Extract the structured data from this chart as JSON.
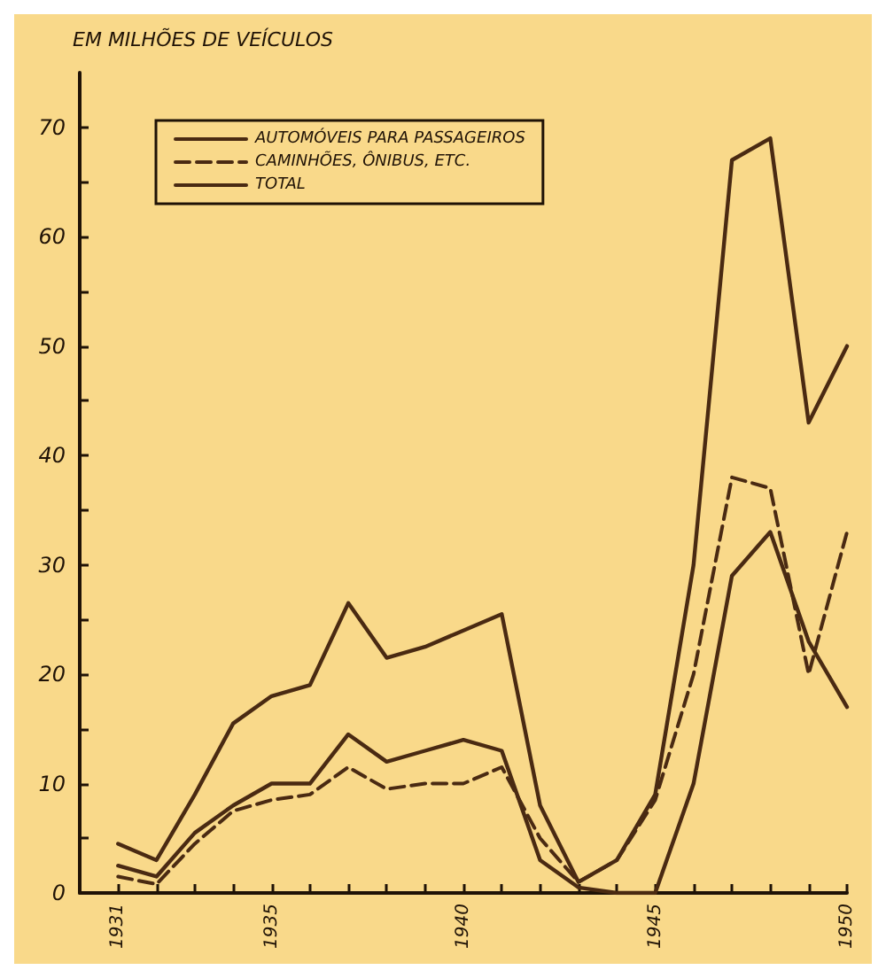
{
  "chart_data": {
    "type": "line",
    "ylabel": "EM MILHÕES DE VEÍCULOS",
    "x": [
      1931,
      1932,
      1933,
      1934,
      1935,
      1936,
      1937,
      1938,
      1939,
      1940,
      1941,
      1942,
      1943,
      1944,
      1945,
      1946,
      1947,
      1948,
      1949,
      1950
    ],
    "series": [
      {
        "name": "AUTOMÓVEIS PARA PASSAGEIROS",
        "color": "#4a2a12",
        "line_style": "solid",
        "values": [
          2.5,
          1.5,
          5.5,
          8,
          10,
          10,
          14.5,
          12,
          13,
          14,
          13,
          3,
          0.5,
          0,
          0,
          10,
          29,
          33,
          23,
          17
        ]
      },
      {
        "name": "CAMINHÕES, ÔNIBUS, ETC.",
        "color": "#4a2a12",
        "line_style": "dashed",
        "values": [
          1.5,
          0.8,
          4.5,
          7.5,
          8.5,
          9,
          11.5,
          9.5,
          10,
          10,
          11.5,
          5,
          1,
          3,
          8.5,
          20,
          38,
          37,
          20,
          33
        ]
      },
      {
        "name": "TOTAL",
        "color": "#4a2a12",
        "line_style": "solid",
        "values": [
          4.5,
          3,
          9,
          15.5,
          18,
          19,
          26.5,
          21.5,
          22.5,
          24,
          25.5,
          8,
          1,
          3,
          9,
          30,
          67,
          69,
          43,
          50
        ]
      }
    ],
    "xlim": [
      1930,
      1950
    ],
    "xticks": [
      {
        "value": 1930,
        "label": null
      },
      1931,
      {
        "value": 1932,
        "label": null
      },
      {
        "value": 1933,
        "label": null
      },
      {
        "value": 1934,
        "label": null
      },
      1935,
      {
        "value": 1936,
        "label": null
      },
      {
        "value": 1937,
        "label": null
      },
      {
        "value": 1938,
        "label": null
      },
      {
        "value": 1939,
        "label": null
      },
      1940,
      {
        "value": 1941,
        "label": null
      },
      {
        "value": 1942,
        "label": null
      },
      {
        "value": 1943,
        "label": null
      },
      {
        "value": 1944,
        "label": null
      },
      1945,
      {
        "value": 1946,
        "label": null
      },
      {
        "value": 1947,
        "label": null
      },
      {
        "value": 1948,
        "label": null
      },
      {
        "value": 1949,
        "label": null
      },
      1950
    ],
    "ylim": [
      0,
      75
    ],
    "yticks": [
      0,
      {
        "value": 5,
        "label": null
      },
      10,
      {
        "value": 15,
        "label": null
      },
      20,
      {
        "value": 25,
        "label": null
      },
      30,
      {
        "value": 35,
        "label": null
      },
      40,
      {
        "value": 45,
        "label": null
      },
      50,
      {
        "value": 55,
        "label": null
      },
      60,
      {
        "value": 65,
        "label": null
      },
      70
    ],
    "grid": false,
    "legend": "top left",
    "marker": "none"
  }
}
